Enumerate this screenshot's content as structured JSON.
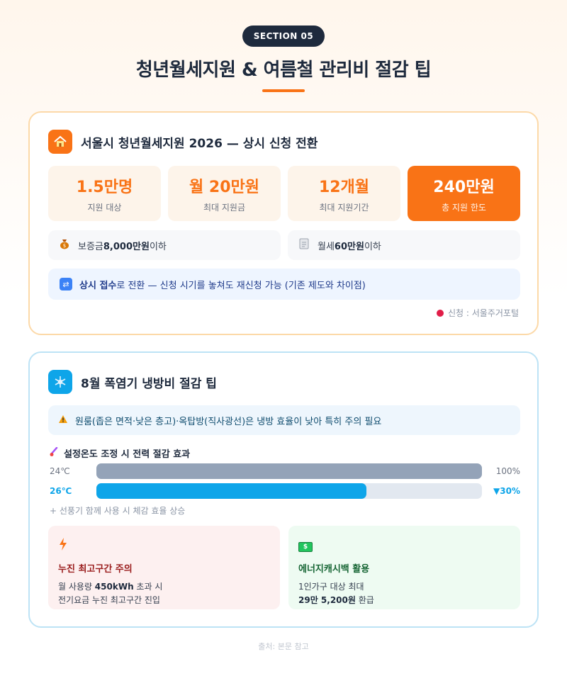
{
  "header": {
    "section_label": "SECTION 05",
    "title": "청년월세지원 & 여름철 관리비 절감 팁"
  },
  "card1": {
    "title": "서울시 청년월세지원 2026 — 상시 신청 전환",
    "stats": [
      {
        "value": "1.5만명",
        "label": "지원 대상"
      },
      {
        "value": "월 20만원",
        "label": "최대 지원금"
      },
      {
        "value": "12개월",
        "label": "최대 지원기간"
      },
      {
        "value": "240만원",
        "label": "총 지원 한도"
      }
    ],
    "conditions": [
      {
        "prefix": "보증금 ",
        "bold": "8,000만원",
        "suffix": " 이하",
        "icon": "money-bag-icon"
      },
      {
        "prefix": "월세 ",
        "bold": "60만원",
        "suffix": " 이하",
        "icon": "document-icon"
      }
    ],
    "notice": {
      "bold": "상시 접수",
      "text": "로 전환 — 신청 시기를 놓쳐도 재신청 가능 (기존 제도와 차이점)"
    },
    "apply": "신청 : 서울주거포털"
  },
  "card2": {
    "title": "8월 폭염기 냉방비 절감 팁",
    "warning": "원룸(좁은 면적·낮은 층고)·옥탑방(직사광선)은 냉방 효율이 낮아 특히 주의 필요",
    "bar_title": "설정온도 조정 시 전력 절감 효과",
    "bars": [
      {
        "label": "24℃",
        "value_text": "100%",
        "fraction": 1.0
      },
      {
        "label": "26℃",
        "value_text": "▼30%",
        "fraction": 0.7
      }
    ],
    "bar_note": "+ 선풍기 함께 사용 시 체감 효율 상승",
    "tips": [
      {
        "title": "누진 최고구간 주의",
        "line1_prefix": "월 사용량 ",
        "line1_bold": "450kWh",
        "line1_suffix": " 초과 시",
        "line2": "전기요금 누진 최고구간 진입",
        "icon": "lightning-icon"
      },
      {
        "title": "에너지캐시백 활용",
        "line1": "1인가구 대상 최대",
        "line2_bold": "29만 5,200원",
        "line2_suffix": " 환급",
        "icon": "cash-icon"
      }
    ]
  },
  "footer": "출처: 본문 참고",
  "colors": {
    "accent": "#f97316",
    "navy": "#1e2a3d",
    "sky": "#0ea5e9"
  }
}
